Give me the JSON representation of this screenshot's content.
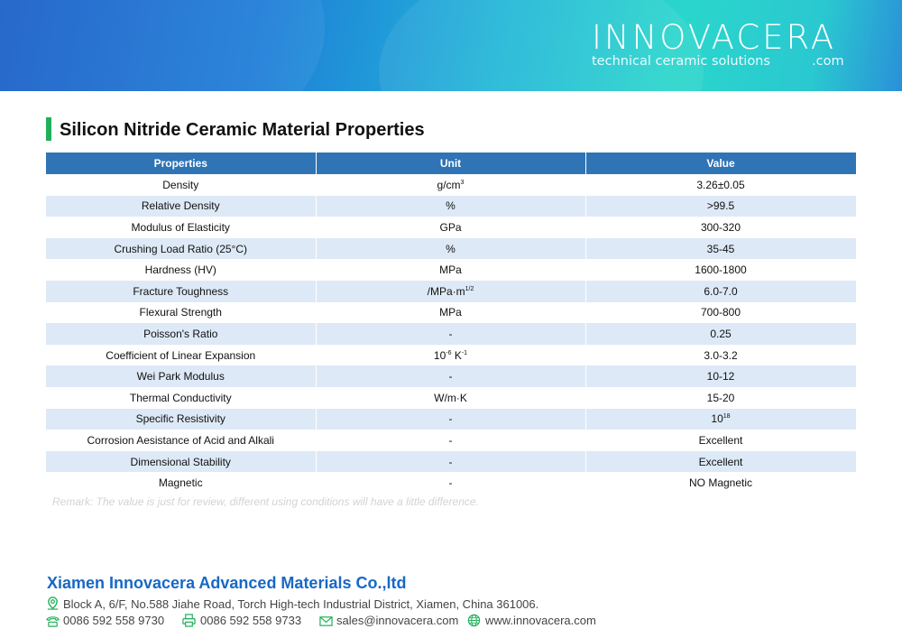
{
  "banner": {
    "logo": "INNOVACERA",
    "tagline": "technical ceramic solutions",
    "domain": ".com"
  },
  "title": "Silicon Nitride Ceramic Material Properties",
  "table": {
    "headers": [
      "Properties",
      "Unit",
      "Value"
    ],
    "rows": [
      {
        "property": "Density",
        "unit": "g/cm",
        "unit_sup": "3",
        "unit2": "",
        "unit2_sup": "",
        "value": "3.26±0.05",
        "value_sup": ""
      },
      {
        "property": "Relative Density",
        "unit": "%",
        "unit_sup": "",
        "unit2": "",
        "unit2_sup": "",
        "value": ">99.5",
        "value_sup": ""
      },
      {
        "property": "Modulus of Elasticity",
        "unit": "GPa",
        "unit_sup": "",
        "unit2": "",
        "unit2_sup": "",
        "value": "300-320",
        "value_sup": ""
      },
      {
        "property": "Crushing Load Ratio (25°C)",
        "unit": "%",
        "unit_sup": "",
        "unit2": "",
        "unit2_sup": "",
        "value": "35-45",
        "value_sup": ""
      },
      {
        "property": "Hardness (HV)",
        "unit": "MPa",
        "unit_sup": "",
        "unit2": "",
        "unit2_sup": "",
        "value": "1600-1800",
        "value_sup": ""
      },
      {
        "property": "Fracture Toughness",
        "unit": "/MPa·m",
        "unit_sup": "1/2",
        "unit2": "",
        "unit2_sup": "",
        "value": "6.0-7.0",
        "value_sup": ""
      },
      {
        "property": "Flexural Strength",
        "unit": "MPa",
        "unit_sup": "",
        "unit2": "",
        "unit2_sup": "",
        "value": "700-800",
        "value_sup": ""
      },
      {
        "property": "Poisson's Ratio",
        "unit": "-",
        "unit_sup": "",
        "unit2": "",
        "unit2_sup": "",
        "value": "0.25",
        "value_sup": ""
      },
      {
        "property": "Coefficient of Linear Expansion",
        "unit": "10",
        "unit_sup": "-6",
        "unit2": " K",
        "unit2_sup": "-1",
        "value": "3.0-3.2",
        "value_sup": ""
      },
      {
        "property": "Wei Park Modulus",
        "unit": "-",
        "unit_sup": "",
        "unit2": "",
        "unit2_sup": "",
        "value": "10-12",
        "value_sup": ""
      },
      {
        "property": "Thermal Conductivity",
        "unit": "W/m·K",
        "unit_sup": "",
        "unit2": "",
        "unit2_sup": "",
        "value": "15-20",
        "value_sup": ""
      },
      {
        "property": "Specific Resistivity",
        "unit": "-",
        "unit_sup": "",
        "unit2": "",
        "unit2_sup": "",
        "value": "10",
        "value_sup": "18"
      },
      {
        "property": "Corrosion Aesistance of Acid and Alkali",
        "unit": "-",
        "unit_sup": "",
        "unit2": "",
        "unit2_sup": "",
        "value": "Excellent",
        "value_sup": ""
      },
      {
        "property": "Dimensional Stability",
        "unit": "-",
        "unit_sup": "",
        "unit2": "",
        "unit2_sup": "",
        "value": "Excellent",
        "value_sup": ""
      },
      {
        "property": "Magnetic",
        "unit": "-",
        "unit_sup": "",
        "unit2": "",
        "unit2_sup": "",
        "value": "NO Magnetic",
        "value_sup": ""
      }
    ]
  },
  "remark": "Remark: The value is just for review, different using conditions will have a little difference.",
  "footer": {
    "company": "Xiamen Innovacera Advanced Materials Co.,ltd",
    "address": "Block A, 6/F, No.588 Jiahe Road, Torch High-tech Industrial District, Xiamen, China 361006.",
    "phone": "0086 592 558 9730",
    "fax": "0086 592 558 9733",
    "email": "sales@innovacera.com",
    "website": "www.innovacera.com"
  },
  "colors": {
    "header": "#2f74b5",
    "alt_row": "#dde9f6",
    "accent": "#21b05a",
    "company": "#1768c6"
  }
}
